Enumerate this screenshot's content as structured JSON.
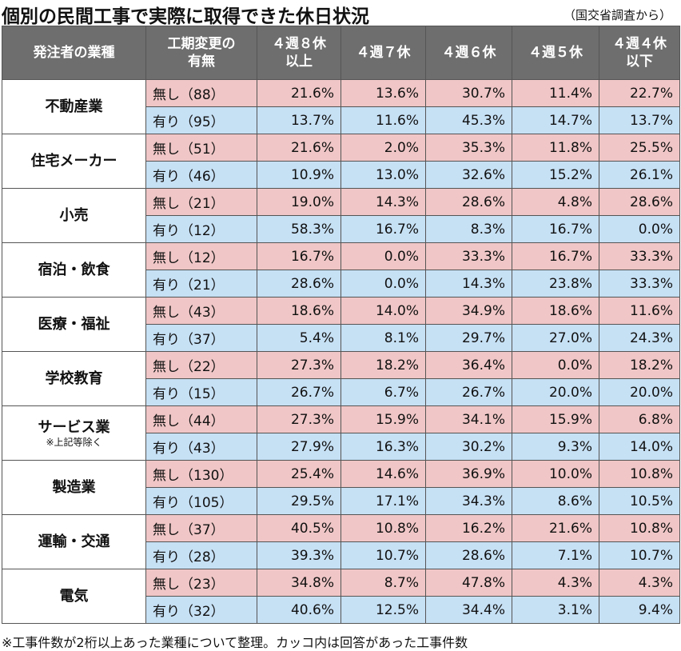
{
  "title": "個別の民間工事で実際に取得できた休日状況",
  "source": "（国交省調査から）",
  "columns": {
    "industry": "発注者の業種",
    "change_1": "工期変更の",
    "change_2": "有無",
    "c1_1": "４週８休",
    "c1_2": "以上",
    "c2": "４週７休",
    "c3": "４週６休",
    "c4": "４週５休",
    "c5_1": "４週４休",
    "c5_2": "以下"
  },
  "rows": [
    {
      "industry": "不動産業",
      "note": "",
      "none": {
        "cond": "無し（88）",
        "v": [
          "21.6%",
          "13.6%",
          "30.7%",
          "11.4%",
          "22.7%"
        ]
      },
      "with": {
        "cond": "有り（95）",
        "v": [
          "13.7%",
          "11.6%",
          "45.3%",
          "14.7%",
          "13.7%"
        ]
      }
    },
    {
      "industry": "住宅メーカー",
      "note": "",
      "none": {
        "cond": "無し（51）",
        "v": [
          "21.6%",
          "2.0%",
          "35.3%",
          "11.8%",
          "25.5%"
        ]
      },
      "with": {
        "cond": "有り（46）",
        "v": [
          "10.9%",
          "13.0%",
          "32.6%",
          "15.2%",
          "26.1%"
        ]
      }
    },
    {
      "industry": "小売",
      "note": "",
      "none": {
        "cond": "無し（21）",
        "v": [
          "19.0%",
          "14.3%",
          "28.6%",
          "4.8%",
          "28.6%"
        ]
      },
      "with": {
        "cond": "有り（12）",
        "v": [
          "58.3%",
          "16.7%",
          "8.3%",
          "16.7%",
          "0.0%"
        ]
      }
    },
    {
      "industry": "宿泊・飲食",
      "note": "",
      "none": {
        "cond": "無し（12）",
        "v": [
          "16.7%",
          "0.0%",
          "33.3%",
          "16.7%",
          "33.3%"
        ]
      },
      "with": {
        "cond": "有り（21）",
        "v": [
          "28.6%",
          "0.0%",
          "14.3%",
          "23.8%",
          "33.3%"
        ]
      }
    },
    {
      "industry": "医療・福祉",
      "note": "",
      "none": {
        "cond": "無し（43）",
        "v": [
          "18.6%",
          "14.0%",
          "34.9%",
          "18.6%",
          "11.6%"
        ]
      },
      "with": {
        "cond": "有り（37）",
        "v": [
          "5.4%",
          "8.1%",
          "29.7%",
          "27.0%",
          "24.3%"
        ]
      }
    },
    {
      "industry": "学校教育",
      "note": "",
      "none": {
        "cond": "無し（22）",
        "v": [
          "27.3%",
          "18.2%",
          "36.4%",
          "0.0%",
          "18.2%"
        ]
      },
      "with": {
        "cond": "有り（15）",
        "v": [
          "26.7%",
          "6.7%",
          "26.7%",
          "20.0%",
          "20.0%"
        ]
      }
    },
    {
      "industry": "サービス業",
      "note": "※上記等除く",
      "none": {
        "cond": "無し（44）",
        "v": [
          "27.3%",
          "15.9%",
          "34.1%",
          "15.9%",
          "6.8%"
        ]
      },
      "with": {
        "cond": "有り（43）",
        "v": [
          "27.9%",
          "16.3%",
          "30.2%",
          "9.3%",
          "14.0%"
        ]
      }
    },
    {
      "industry": "製造業",
      "note": "",
      "none": {
        "cond": "無し（130）",
        "v": [
          "25.4%",
          "14.6%",
          "36.9%",
          "10.0%",
          "10.8%"
        ]
      },
      "with": {
        "cond": "有り（105）",
        "v": [
          "29.5%",
          "17.1%",
          "34.3%",
          "8.6%",
          "10.5%"
        ]
      }
    },
    {
      "industry": "運輸・交通",
      "note": "",
      "none": {
        "cond": "無し（37）",
        "v": [
          "40.5%",
          "10.8%",
          "16.2%",
          "21.6%",
          "10.8%"
        ]
      },
      "with": {
        "cond": "有り（28）",
        "v": [
          "39.3%",
          "10.7%",
          "28.6%",
          "7.1%",
          "10.7%"
        ]
      }
    },
    {
      "industry": "電気",
      "note": "",
      "none": {
        "cond": "無し（23）",
        "v": [
          "34.8%",
          "8.7%",
          "47.8%",
          "4.3%",
          "4.3%"
        ]
      },
      "with": {
        "cond": "有り（32）",
        "v": [
          "40.6%",
          "12.5%",
          "34.4%",
          "3.1%",
          "9.4%"
        ]
      }
    }
  ],
  "footnote": "※工事件数が2桁以上あった業種について整理。カッコ内は回答があった工事件数",
  "colors": {
    "header_bg": "#6e6e6e",
    "no_change_row": "#f0c6c6",
    "changed_row": "#c6e0f4"
  }
}
